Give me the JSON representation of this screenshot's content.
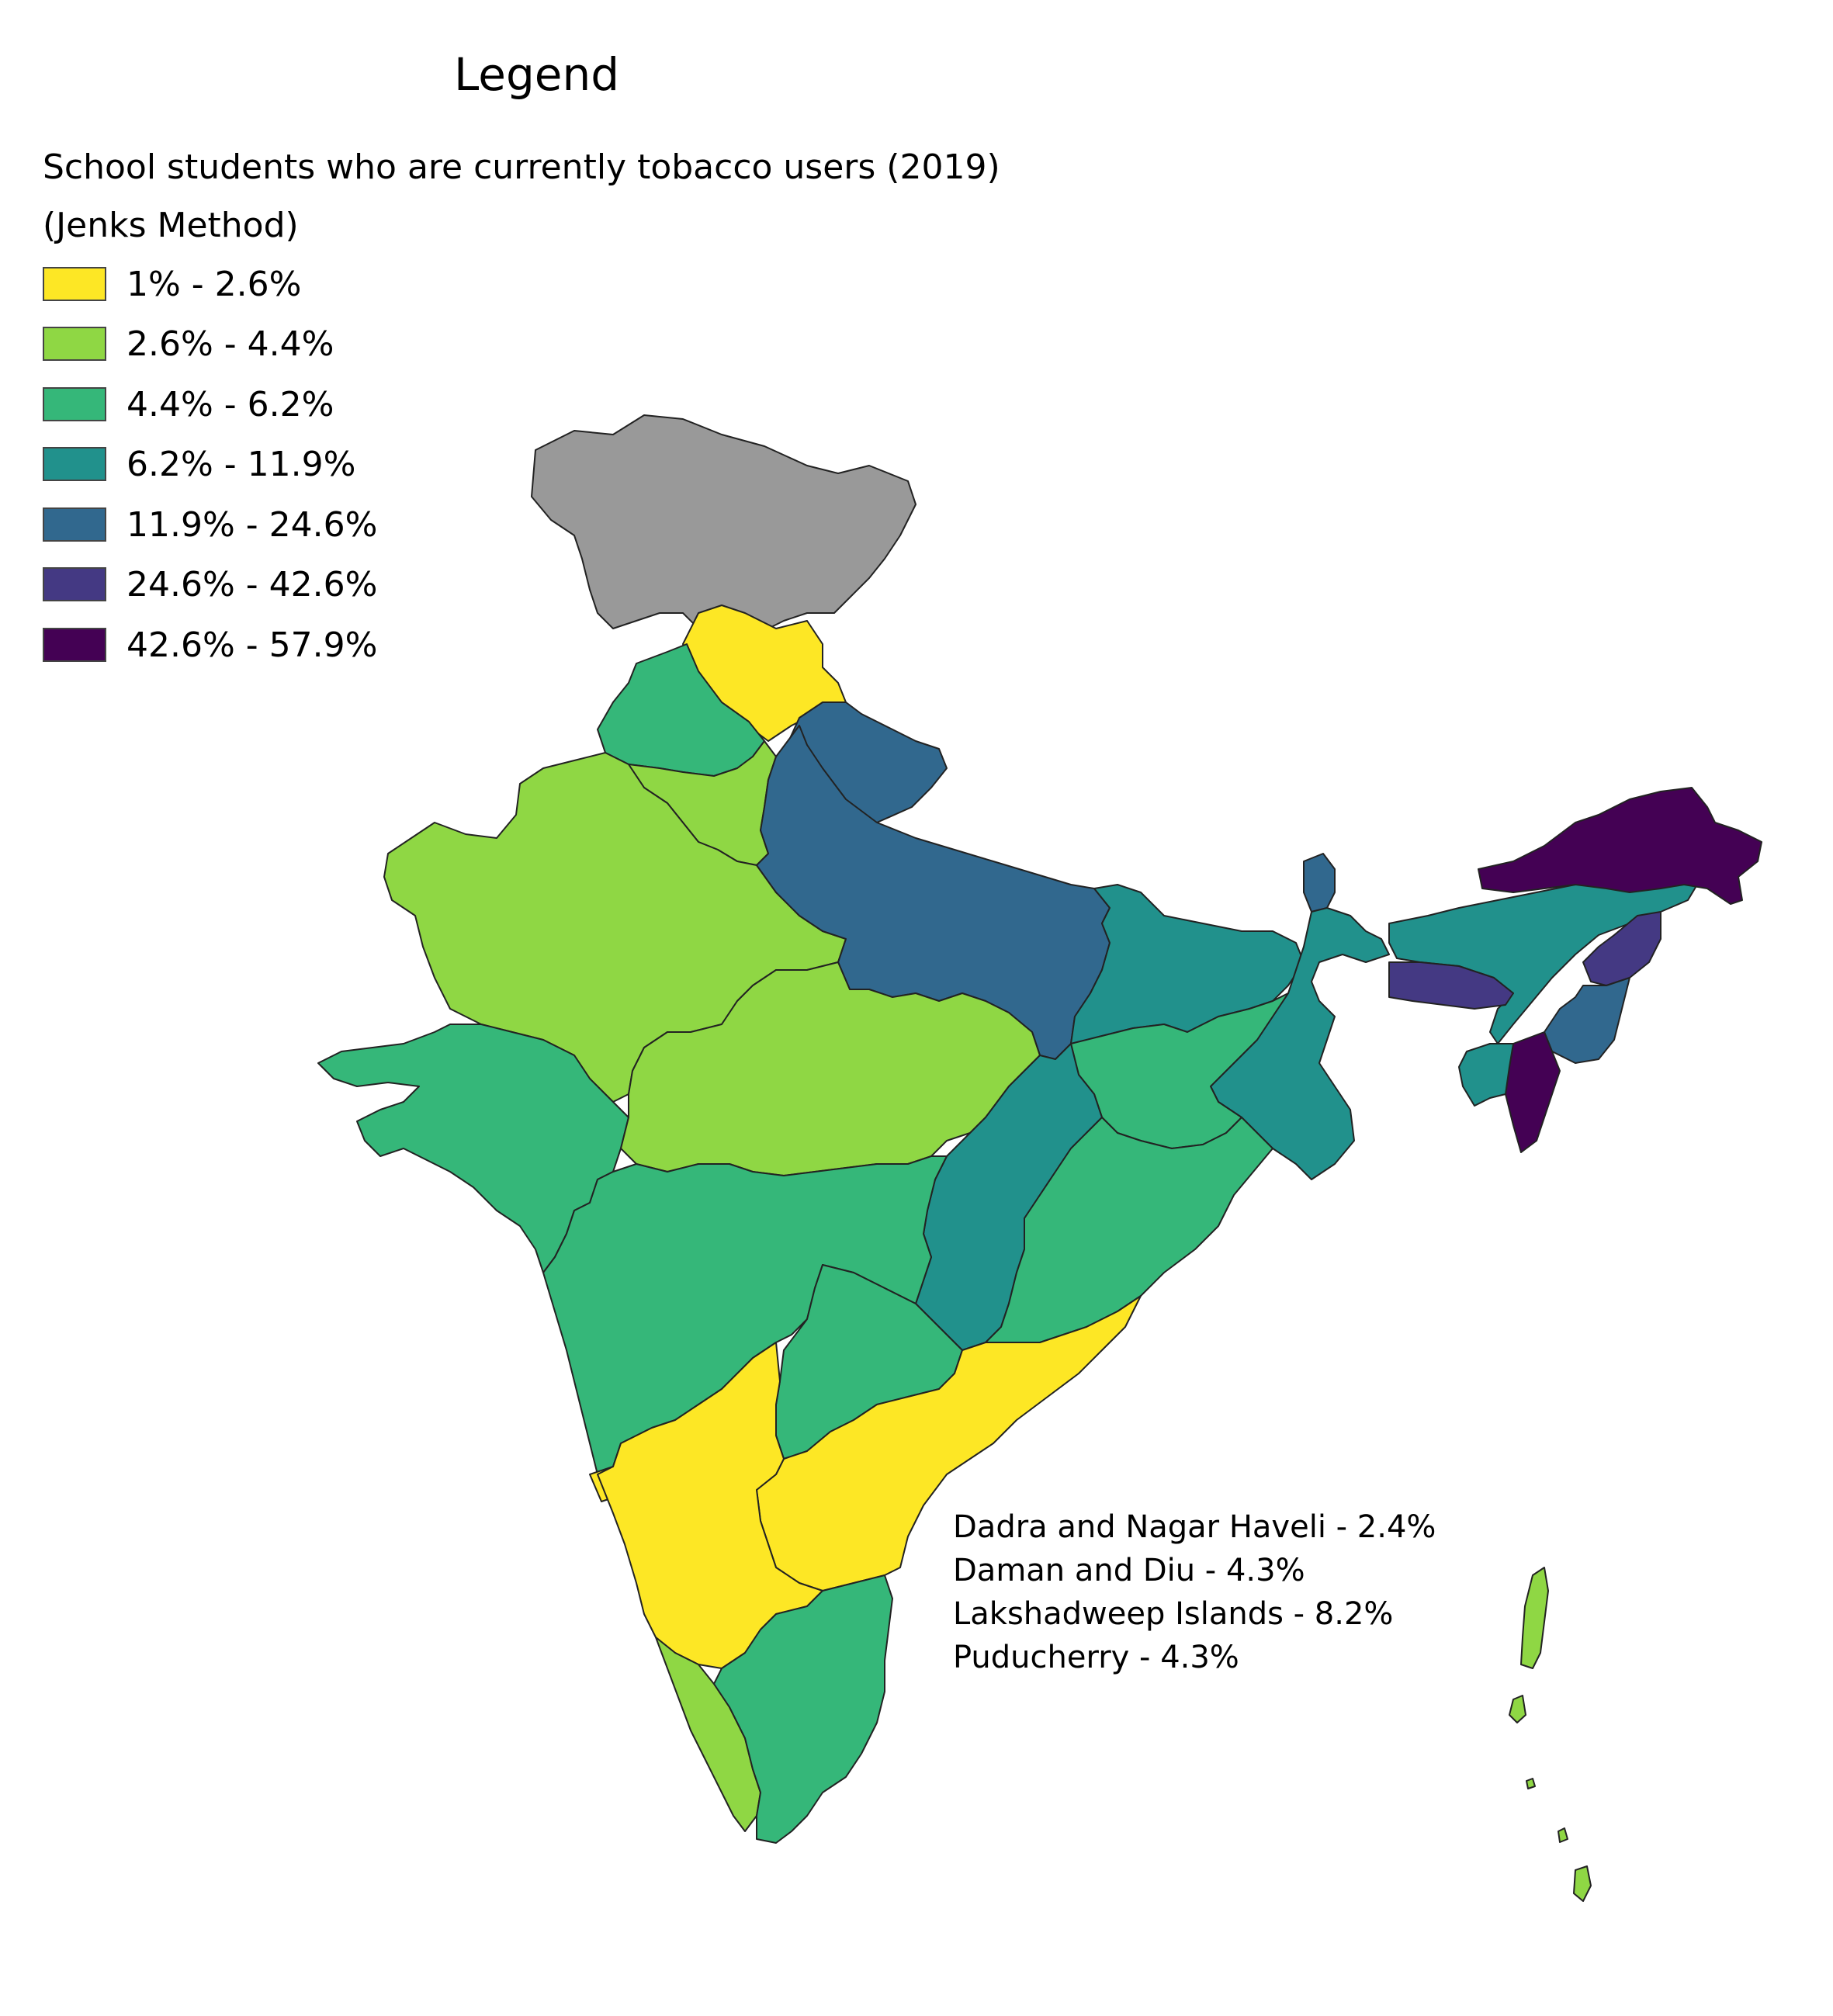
{
  "legend": {
    "heading": "Legend",
    "title_line1": "School students who are currently tobacco users (2019)",
    "title_line2": "(Jenks Method)",
    "classes": [
      {
        "label": "1% - 2.6%",
        "color": "#fde725"
      },
      {
        "label": "2.6% - 4.4%",
        "color": "#8fd744"
      },
      {
        "label": "4.4% - 6.2%",
        "color": "#35b779"
      },
      {
        "label": "6.2% - 11.9%",
        "color": "#21918c"
      },
      {
        "label": "11.9% - 24.6%",
        "color": "#31688e"
      },
      {
        "label": "24.6% - 42.6%",
        "color": "#443983"
      },
      {
        "label": "42.6% - 57.9%",
        "color": "#440154"
      }
    ],
    "no_data_color": "#999999"
  },
  "notes": [
    "Dadra and Nagar Haveli - 2.4%",
    "Daman and Diu - 4.3%",
    "Lakshadweep Islands - 8.2%",
    "Puducherry - 4.3%"
  ]
}
